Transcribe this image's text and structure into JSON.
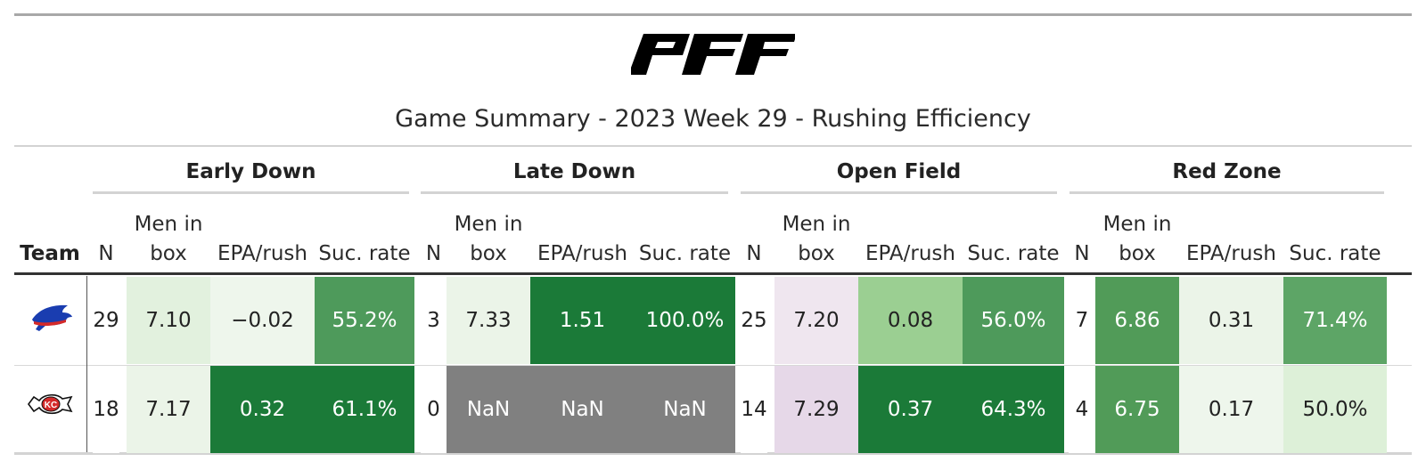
{
  "header": {
    "logo_text": "PFF",
    "title": "Game Summary - 2023 Week 29 - Rushing Efficiency"
  },
  "groups": [
    "Early Down",
    "Late Down",
    "Open Field",
    "Red Zone"
  ],
  "columns": {
    "team": "Team",
    "n": "N",
    "box_line1": "Men in",
    "box_line2": "box",
    "epa": "EPA/rush",
    "suc": "Suc. rate"
  },
  "rows": [
    {
      "team_logo": "buffalo-bills-logo",
      "cells": [
        "29",
        "7.10",
        "−0.02",
        "55.2%",
        "3",
        "7.33",
        "1.51",
        "100.0%",
        "25",
        "7.20",
        "0.08",
        "56.0%",
        "7",
        "6.86",
        "0.31",
        "71.4%"
      ],
      "colors": [
        "#ffffff",
        "#e2f1de",
        "#eef6ec",
        "#4e9a5b",
        "#ffffff",
        "#ebf4e8",
        "#1b7a38",
        "#1b7a38",
        "#ffffff",
        "#efe6ef",
        "#9bcf92",
        "#4e9a5b",
        "#ffffff",
        "#519b58",
        "#ebf4e8",
        "#5da566"
      ]
    },
    {
      "team_logo": "kansas-city-chiefs-logo",
      "cells": [
        "18",
        "7.17",
        "0.32",
        "61.1%",
        "0",
        "NaN",
        "NaN",
        "NaN",
        "14",
        "7.29",
        "0.37",
        "64.3%",
        "4",
        "6.75",
        "0.17",
        "50.0%"
      ],
      "colors": [
        "#ffffff",
        "#ebf4e8",
        "#1b7a38",
        "#1b7a38",
        "#ffffff",
        "#808080",
        "#808080",
        "#808080",
        "#ffffff",
        "#e6d8e8",
        "#1b7a38",
        "#1b7a38",
        "#ffffff",
        "#519b58",
        "#eef6ec",
        "#ddf0d8"
      ]
    }
  ]
}
